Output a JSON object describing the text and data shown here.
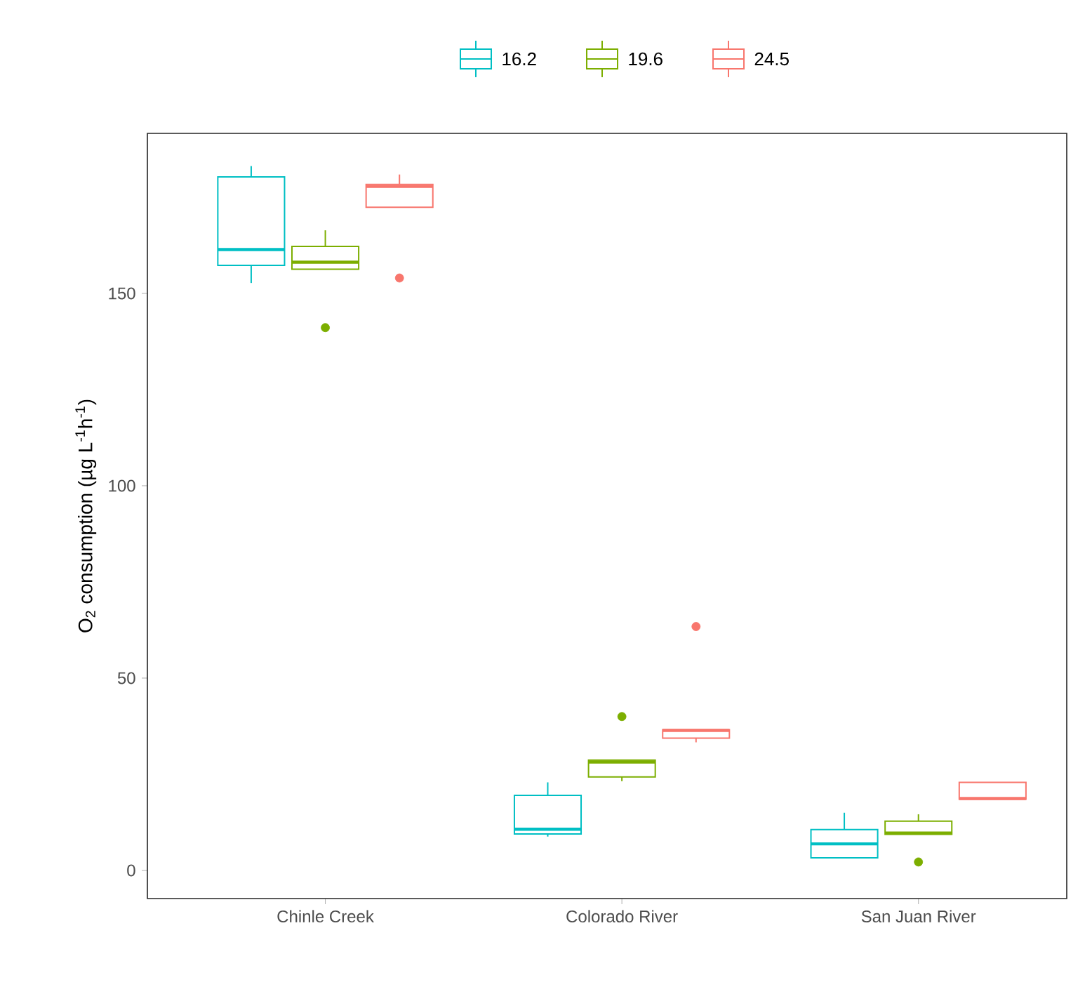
{
  "chart_data": {
    "type": "box",
    "ylabel": "O$_{2}$ consumption (µg L$^{-1}$h$^{-1}$)",
    "categories": [
      "Chinle Creek",
      "Colorado River",
      "San Juan River"
    ],
    "ylim": [
      -7.3,
      191.6
    ],
    "yticks": [
      0,
      50,
      100,
      150
    ],
    "legend": "top",
    "grid": false,
    "series": [
      {
        "name": "16.2",
        "color": "#00bfc4",
        "boxes": [
          {
            "low": 152.7,
            "q1": 157.3,
            "median": 161.4,
            "q3": 180.3,
            "high": 183.1
          },
          {
            "low": 8.8,
            "q1": 9.5,
            "median": 10.7,
            "q3": 19.5,
            "high": 22.9
          },
          {
            "low": 3.3,
            "q1": 3.3,
            "median": 6.9,
            "q3": 10.6,
            "high": 15.0
          }
        ]
      },
      {
        "name": "19.6",
        "color": "#7cae00",
        "boxes": [
          {
            "low": 156.3,
            "q1": 156.3,
            "median": 158.1,
            "q3": 162.2,
            "high": 166.4,
            "outliers": [
              141.1
            ]
          },
          {
            "low": 23.2,
            "q1": 24.3,
            "median": 28.2,
            "q3": 28.7,
            "high": 28.7,
            "outliers": [
              40.0
            ]
          },
          {
            "low": 9.4,
            "q1": 9.4,
            "median": 9.7,
            "q3": 12.8,
            "high": 14.6,
            "outliers": [
              2.2
            ]
          }
        ]
      },
      {
        "name": "24.5",
        "color": "#f8766d",
        "boxes": [
          {
            "low": 172.4,
            "q1": 172.4,
            "median": 177.8,
            "q3": 178.3,
            "high": 180.9,
            "outliers": [
              154.0
            ]
          },
          {
            "low": 33.3,
            "q1": 34.4,
            "median": 36.4,
            "q3": 36.6,
            "high": 36.6,
            "outliers": [
              63.4
            ]
          },
          {
            "low": 18.5,
            "q1": 18.5,
            "median": 18.7,
            "q3": 22.9,
            "high": 22.9
          }
        ]
      }
    ]
  }
}
